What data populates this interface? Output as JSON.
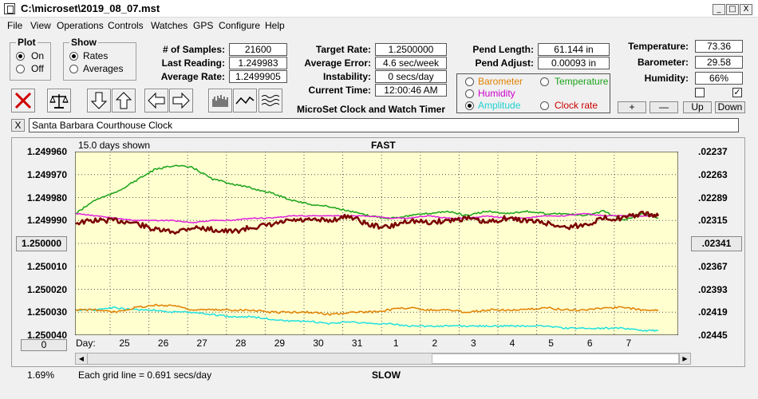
{
  "window": {
    "title": "C:\\microset\\2019_08_07.mst",
    "minimize": "_",
    "maximize": "□",
    "close": "X"
  },
  "menu": [
    "File",
    "View",
    "Operations",
    "Controls",
    "Watches",
    "GPS",
    "Configure",
    "Help"
  ],
  "plot_group": {
    "title": "Plot",
    "on": "On",
    "off": "Off",
    "selected": "On"
  },
  "show_group": {
    "title": "Show",
    "rates": "Rates",
    "averages": "Averages",
    "selected": "Rates"
  },
  "stats": {
    "samples_label": "# of Samples:",
    "samples": "21600",
    "last_label": "Last Reading:",
    "last": "1.249983",
    "avg_label": "Average Rate:",
    "avg": "1.2499905",
    "target_label": "Target Rate:",
    "target": "1.2500000",
    "error_label": "Average Error:",
    "error": "4.6 sec/week",
    "instab_label": "Instability:",
    "instab": "0 secs/day",
    "time_label": "Current Time:",
    "time": "12:00:46 AM",
    "pend_len_label": "Pend Length:",
    "pend_len": "61.144 in",
    "pend_adj_label": "Pend Adjust:",
    "pend_adj": "0.00093 in",
    "temp_label": "Temperature:",
    "temp": "73.36",
    "baro_label": "Barometer:",
    "baro": "29.58",
    "hum_label": "Humidity:",
    "hum": "66%"
  },
  "app_name": "MicroSet Clock and Watch Timer",
  "options": {
    "barometer": "Barometer",
    "temperature": "Temperature",
    "humidity": "Humidity",
    "amplitude": "Amplitude",
    "clock_rate": "Clock rate",
    "selected": "Amplitude"
  },
  "adjust_buttons": {
    "plus": "+",
    "minus": "—",
    "up": "Up",
    "down": "Down"
  },
  "clock_close": "X",
  "clock_name": "Santa Barbara Courthouse Clock",
  "colors": {
    "plot_bg": "#ffffd0",
    "rate": "#7a0000",
    "temperature": "#1aa31a",
    "humidity": "#e020e0",
    "barometer": "#e08000",
    "amplitude": "#20e0e0",
    "barometer_text": "#e08000",
    "temperature_text": "#1aa31a",
    "humidity_text": "#cc00cc",
    "amplitude_text": "#20d0d0",
    "clock_rate_text": "#cc0000"
  },
  "plot": {
    "days_shown": "15.0 days shown",
    "fast": "FAST",
    "slow": "SLOW",
    "day_label": "Day:",
    "grid_note": "Each grid line = 0.691 secs/day",
    "center_button": "1.250000",
    "right_button": ".02341",
    "zero_button": "0",
    "percent": "1.69%",
    "left_ticks": [
      "1.249960",
      "1.249970",
      "1.249980",
      "1.249990",
      "1.250000",
      "1.250010",
      "1.250020",
      "1.250030",
      "1.250040"
    ],
    "right_ticks": [
      ".02237",
      ".02263",
      ".02289",
      ".02315",
      ".02341",
      ".02367",
      ".02393",
      ".02419",
      ".02445"
    ],
    "days": [
      "25",
      "26",
      "27",
      "28",
      "29",
      "30",
      "31",
      "1",
      "2",
      "3",
      "4",
      "5",
      "6",
      "7"
    ]
  },
  "chart_data": {
    "type": "line",
    "x": [
      0,
      0.5,
      1,
      1.5,
      2,
      2.5,
      3,
      3.5,
      4,
      4.5,
      5,
      5.5,
      6,
      6.5,
      7,
      7.5,
      8,
      8.5,
      9,
      9.5,
      10,
      10.5,
      11,
      11.5,
      12,
      12.5,
      13,
      13.5,
      14,
      14.5,
      14.9
    ],
    "ylim": [
      1.24996,
      1.25004
    ],
    "series": [
      {
        "values": [
          1.249991,
          1.24999,
          1.24999,
          1.249991,
          1.249994,
          1.249995,
          1.249993,
          1.249994,
          1.249995,
          1.249993,
          1.249992,
          1.24999,
          1.24999,
          1.24999,
          1.249988,
          1.249992,
          1.249993,
          1.24999,
          1.249991,
          1.24999,
          1.249989,
          1.249991,
          1.249989,
          1.24999,
          1.249991,
          1.249993,
          1.249992,
          1.249989,
          1.249989,
          1.249987,
          1.249988
        ]
      },
      {
        "values": [
          1.249987,
          1.249981,
          1.249978,
          1.249973,
          1.249968,
          1.249966,
          1.249967,
          1.249972,
          1.249974,
          1.249976,
          1.249978,
          1.249981,
          1.249983,
          1.249984,
          1.249986,
          1.249988,
          1.249989,
          1.249988,
          1.249987,
          1.249986,
          1.249988,
          1.249986,
          1.249987,
          1.249986,
          1.249987,
          1.249987,
          1.249988,
          1.249986,
          1.24999,
          1.249987,
          1.249989
        ]
      },
      {
        "values": [
          1.249987,
          1.249988,
          1.249989,
          1.24999,
          1.24999,
          1.24999,
          1.249991,
          1.24999,
          1.24999,
          1.249989,
          1.249989,
          1.249988,
          1.249988,
          1.249988,
          1.249988,
          1.249988,
          1.249989,
          1.249989,
          1.249988,
          1.249989,
          1.249989,
          1.249988,
          1.249989,
          1.249989,
          1.249988,
          1.249988,
          1.249987,
          1.249988,
          1.249988,
          1.249988,
          1.249988
        ]
      },
      {
        "values": [
          1.250029,
          1.250029,
          1.25003,
          1.250028,
          1.250027,
          1.250027,
          1.250029,
          1.250029,
          1.250029,
          1.250029,
          1.25003,
          1.25003,
          1.25003,
          1.250031,
          1.25003,
          1.25003,
          1.250029,
          1.250028,
          1.250029,
          1.250029,
          1.25003,
          1.250029,
          1.250029,
          1.250029,
          1.250028,
          1.250029,
          1.250029,
          1.250028,
          1.250028,
          1.250029,
          1.250029
        ]
      },
      {
        "values": [
          1.250029,
          1.250029,
          1.250028,
          1.250029,
          1.250029,
          1.25003,
          1.25003,
          1.250031,
          1.250032,
          1.250032,
          1.250033,
          1.250034,
          1.250034,
          1.250035,
          1.250034,
          1.250035,
          1.250035,
          1.250036,
          1.250036,
          1.250036,
          1.250036,
          1.250036,
          1.250036,
          1.250036,
          1.250036,
          1.250037,
          1.250037,
          1.250037,
          1.250037,
          1.250038,
          1.250038
        ]
      }
    ]
  }
}
